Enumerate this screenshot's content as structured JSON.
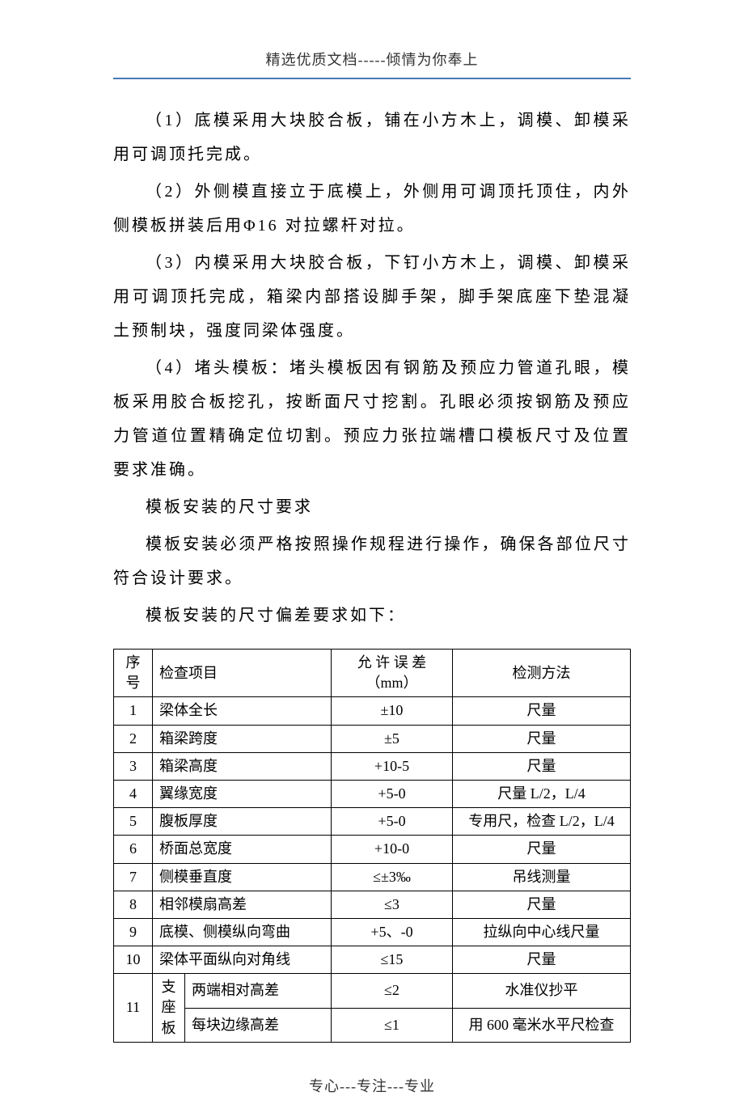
{
  "header": {
    "text": "精选优质文档-----倾情为你奉上"
  },
  "paragraphs": {
    "p1": "（1）底模采用大块胶合板，铺在小方木上，调模、卸模采用可调顶托完成。",
    "p2": "（2）外侧模直接立于底模上，外侧用可调顶托顶住，内外侧模板拼装后用Φ16 对拉螺杆对拉。",
    "p3": "（3）内模采用大块胶合板，下钉小方木上，调模、卸模采用可调顶托完成，箱梁内部搭设脚手架，脚手架底座下垫混凝土预制块，强度同梁体强度。",
    "p4": "（4）堵头模板：堵头模板因有钢筋及预应力管道孔眼，模板采用胶合板挖孔，按断面尺寸挖割。孔眼必须按钢筋及预应力管道位置精确定位切割。预应力张拉端槽口模板尺寸及位置要求准确。",
    "p5": "模板安装的尺寸要求",
    "p6": "模板安装必须严格按照操作规程进行操作，确保各部位尺寸符合设计要求。",
    "p7": "模板安装的尺寸偏差要求如下："
  },
  "table": {
    "headers": {
      "seq": "序号",
      "item": "检查项目",
      "tolerance": "允 许 误 差（mm）",
      "method": "检测方法"
    },
    "rows": [
      {
        "seq": "1",
        "item": "梁体全长",
        "tol": "±10",
        "method": "尺量"
      },
      {
        "seq": "2",
        "item": "箱梁跨度",
        "tol": "±5",
        "method": "尺量"
      },
      {
        "seq": "3",
        "item": "箱梁高度",
        "tol": "+10-5",
        "method": "尺量"
      },
      {
        "seq": "4",
        "item": "翼缘宽度",
        "tol": "+5-0",
        "method": "尺量 L/2，L/4"
      },
      {
        "seq": "5",
        "item": "腹板厚度",
        "tol": "+5-0",
        "method": "专用尺，检查 L/2，L/4"
      },
      {
        "seq": "6",
        "item": "桥面总宽度",
        "tol": "+10-0",
        "method": "尺量"
      },
      {
        "seq": "7",
        "item": "侧模垂直度",
        "tol": "≤±3‰",
        "method": "吊线测量"
      },
      {
        "seq": "8",
        "item": "相邻模扇高差",
        "tol": "≤3",
        "method": "尺量"
      },
      {
        "seq": "9",
        "item": "底模、侧模纵向弯曲",
        "tol": "+5、-0",
        "method": "拉纵向中心线尺量"
      },
      {
        "seq": "10",
        "item": "梁体平面纵向对角线",
        "tol": "≤15",
        "method": "尺量"
      }
    ],
    "row11": {
      "seq": "11",
      "group": "支座板",
      "sub1": {
        "item": "两端相对高差",
        "tol": "≤2",
        "method": "水准仪抄平"
      },
      "sub2": {
        "item": "每块边缘高差",
        "tol": "≤1",
        "method": "用 600 毫米水平尺检查"
      }
    }
  },
  "footer": {
    "text": "专心---专注---专业"
  }
}
